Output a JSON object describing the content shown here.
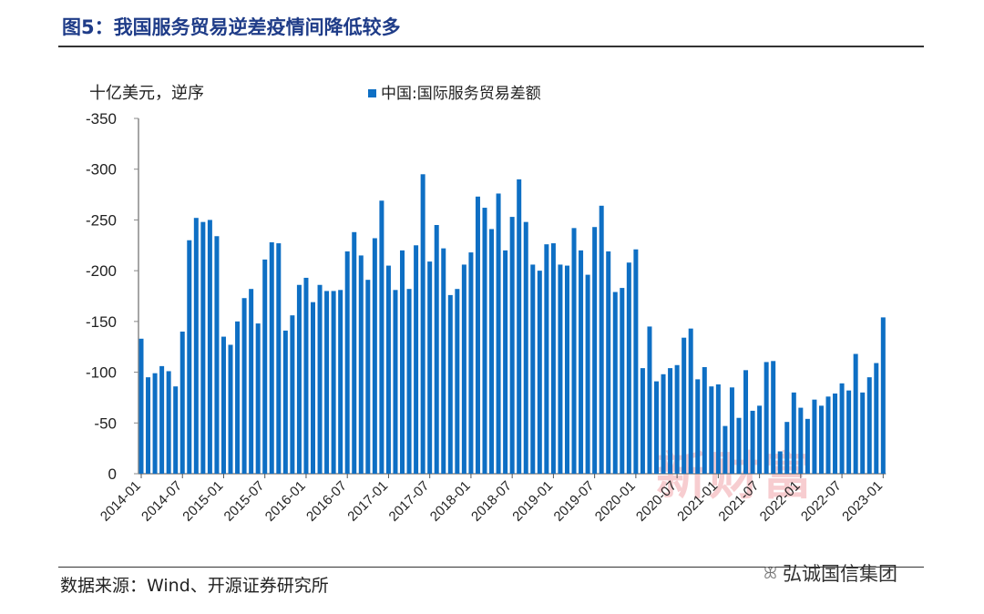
{
  "header": {
    "title": "图5：我国服务贸易逆差疫情间降低较多"
  },
  "footer": {
    "source": "数据来源：Wind、开源证券研究所"
  },
  "watermark": {
    "text": "新财富",
    "brand": "弘诚国信集团"
  },
  "colors": {
    "bar": "#0e6fc4",
    "title": "#1f3c88"
  },
  "chart_data": {
    "type": "bar",
    "title": "图5：我国服务贸易逆差疫情间降低较多",
    "ylabel": "十亿美元，逆序",
    "legend": [
      "中国:国际服务贸易差额"
    ],
    "legend_position": "top-center",
    "y_inverted": true,
    "ylim": [
      0,
      -350
    ],
    "yticks": [
      "-350",
      "-300",
      "-250",
      "-200",
      "-150",
      "-100",
      "-50",
      "0"
    ],
    "xtick_labels": [
      "2014-01",
      "2014-07",
      "2015-01",
      "2015-07",
      "2016-01",
      "2016-07",
      "2017-01",
      "2017-07",
      "2018-01",
      "2018-07",
      "2019-01",
      "2019-07",
      "2020-01",
      "2020-07",
      "2021-01",
      "2021-07",
      "2022-01",
      "2022-07",
      "2023-01"
    ],
    "x_start": "2014-01",
    "x_end": "2023-01",
    "frequency": "monthly",
    "values": [
      -133,
      -95,
      -99,
      -106,
      -101,
      -86,
      -140,
      -230,
      -252,
      -248,
      -250,
      -234,
      -135,
      -127,
      -150,
      -173,
      -182,
      -148,
      -211,
      -228,
      -227,
      -141,
      -156,
      -186,
      -193,
      -169,
      -186,
      -180,
      -180,
      -181,
      -219,
      -238,
      -215,
      -191,
      -232,
      -269,
      -205,
      -181,
      -220,
      -182,
      -225,
      -295,
      -209,
      -245,
      -222,
      -176,
      -182,
      -206,
      -218,
      -273,
      -262,
      -241,
      -276,
      -220,
      -253,
      -290,
      -248,
      -206,
      -200,
      -226,
      -227,
      -206,
      -205,
      -242,
      -220,
      -196,
      -243,
      -264,
      -219,
      -179,
      -183,
      -208,
      -221,
      -104,
      -145,
      -91,
      -98,
      -104,
      -107,
      -134,
      -143,
      -93,
      -105,
      -86,
      -88,
      -47,
      -85,
      -55,
      -102,
      -62,
      -67,
      -110,
      -111,
      -22,
      -51,
      -80,
      -65,
      -54,
      -73,
      -67,
      -76,
      -79,
      -89,
      -82,
      -118,
      -80,
      -95,
      -109,
      -154
    ]
  }
}
